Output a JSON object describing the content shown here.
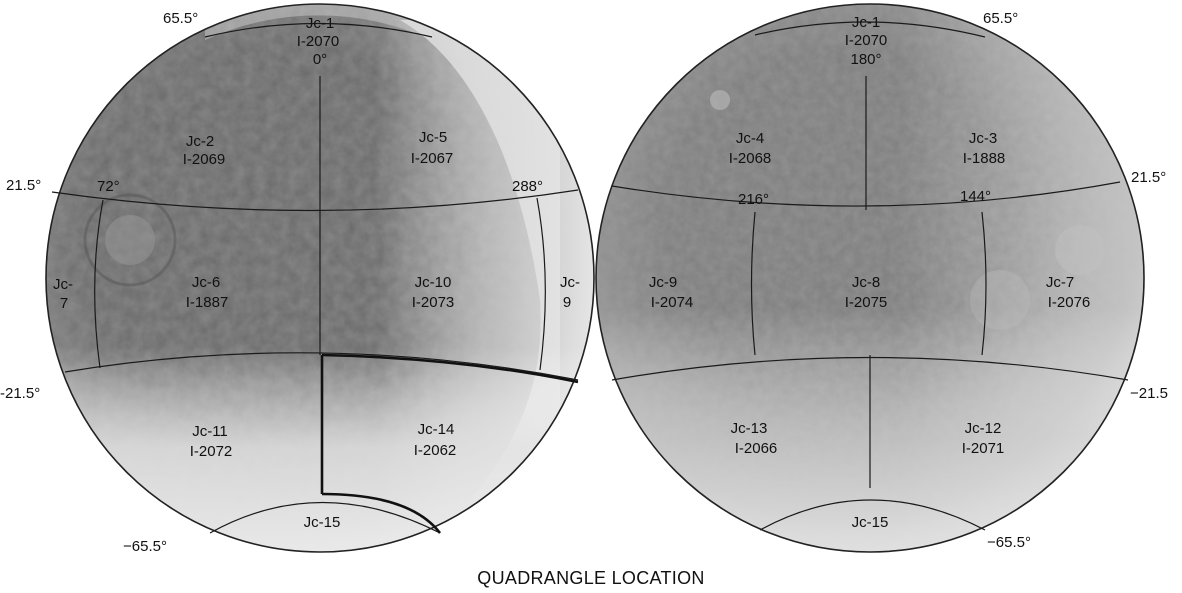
{
  "caption": "QUADRANGLE LOCATION",
  "left_hemisphere": {
    "coords": {
      "lat_n65_left": "65.5°",
      "lat_n21_left": "21.5°",
      "lat_s21_left": "-21.5°",
      "lat_s65_left": "−65.5°",
      "lon_72": "72°",
      "lon_288": "288°"
    },
    "quads": [
      {
        "name": "Jc-1",
        "code": "I-2070",
        "sub": "0°"
      },
      {
        "name": "Jc-2",
        "code": "I-2069"
      },
      {
        "name": "Jc-5",
        "code": "I-2067"
      },
      {
        "name": "Jc-",
        "code": "7"
      },
      {
        "name": "Jc-6",
        "code": "I-1887"
      },
      {
        "name": "Jc-10",
        "code": "I-2073"
      },
      {
        "name": "Jc-",
        "code": "9"
      },
      {
        "name": "Jc-11",
        "code": "I-2072"
      },
      {
        "name": "Jc-14",
        "code": "I-2062"
      },
      {
        "name": "Jc-15"
      }
    ]
  },
  "right_hemisphere": {
    "coords": {
      "lat_n65_right": "65.5°",
      "lat_n21_right": "21.5°",
      "lat_s21_right": "−21.5",
      "lat_s65_right": "−65.5°",
      "lon_216": "216°",
      "lon_144": "144°"
    },
    "quads": [
      {
        "name": "Jc-1",
        "code": "I-2070",
        "sub": "180°"
      },
      {
        "name": "Jc-4",
        "code": "I-2068"
      },
      {
        "name": "Jc-3",
        "code": "I-1888"
      },
      {
        "name": "Jc-9",
        "code": "I-2074"
      },
      {
        "name": "Jc-8",
        "code": "I-2075"
      },
      {
        "name": "Jc-7",
        "code": "I-2076"
      },
      {
        "name": "Jc-13",
        "code": "I-2066"
      },
      {
        "name": "Jc-12",
        "code": "I-2071"
      },
      {
        "name": "Jc-15"
      }
    ]
  }
}
